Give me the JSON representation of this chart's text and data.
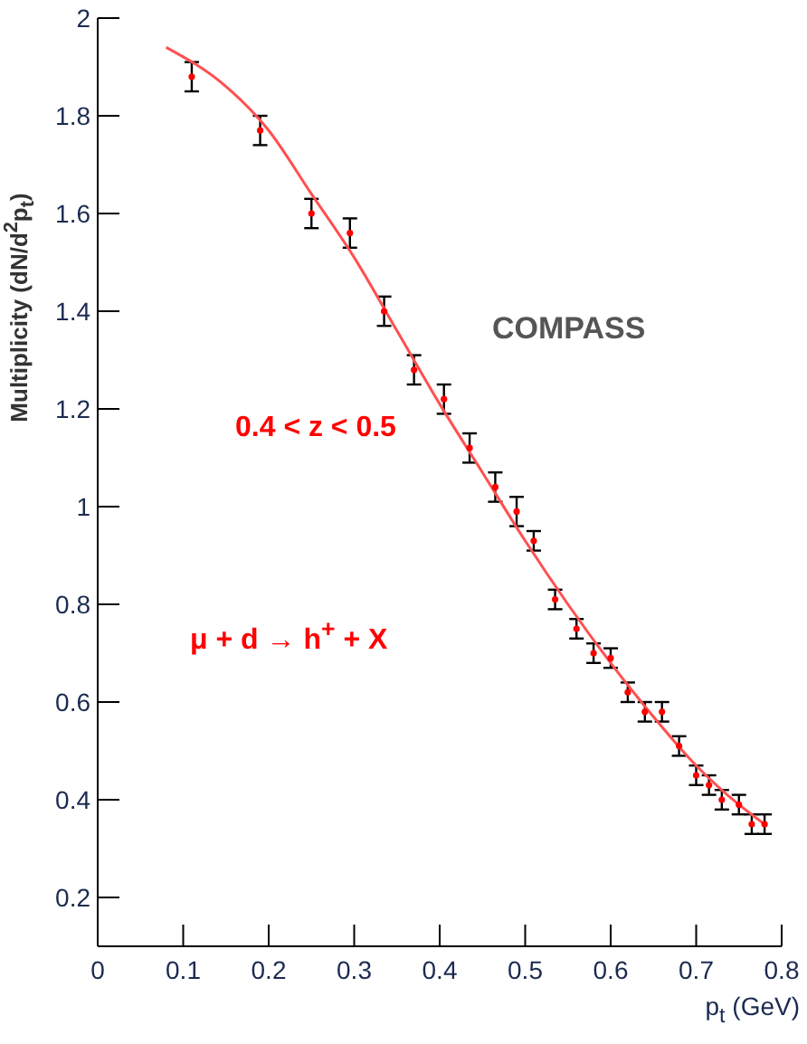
{
  "chart_data": {
    "type": "scatter",
    "xlabel": "p$_{t}$ (GeV)",
    "ylabel": "Multiplicity (dN/d$^{2}$p$_{t}$)",
    "annotations": [
      "COMPASS",
      "0.4 < z < 0.5",
      "μ + d → h$^{+}$ + X"
    ],
    "xlim": [
      0,
      0.8
    ],
    "xticks": [
      0,
      0.1,
      0.2,
      0.3,
      0.4,
      0.5,
      0.6,
      0.7,
      0.8
    ],
    "ylim": [
      0.1,
      2
    ],
    "yticks": [
      0.2,
      0.4,
      0.6,
      0.8,
      1,
      1.2,
      1.4,
      1.6,
      1.8,
      2
    ],
    "grid": false,
    "legend": false,
    "marker": "circle",
    "series": [
      {
        "color": "#ff0000",
        "x": [
          0.11,
          0.19,
          0.25,
          0.295,
          0.335,
          0.37,
          0.405,
          0.435,
          0.465,
          0.49,
          0.51,
          0.535,
          0.56,
          0.58,
          0.6,
          0.62,
          0.64,
          0.66,
          0.68,
          0.7,
          0.715,
          0.73,
          0.75,
          0.765,
          0.78
        ],
        "values": [
          1.88,
          1.77,
          1.6,
          1.56,
          1.4,
          1.28,
          1.22,
          1.12,
          1.04,
          0.99,
          0.93,
          0.81,
          0.75,
          0.7,
          0.69,
          0.62,
          0.58,
          0.58,
          0.51,
          0.45,
          0.43,
          0.4,
          0.39,
          0.35,
          0.35
        ],
        "errors": [
          0.03,
          0.03,
          0.03,
          0.03,
          0.03,
          0.03,
          0.03,
          0.03,
          0.03,
          0.03,
          0.02,
          0.02,
          0.02,
          0.02,
          0.02,
          0.02,
          0.02,
          0.02,
          0.02,
          0.02,
          0.02,
          0.02,
          0.02,
          0.02,
          0.02
        ]
      },
      {
        "type": "line",
        "marker": "none",
        "color": "#ff5050",
        "x": [
          0.08,
          0.15,
          0.2,
          0.25,
          0.3,
          0.35,
          0.4,
          0.45,
          0.5,
          0.55,
          0.6,
          0.65,
          0.7,
          0.75,
          0.78
        ],
        "values": [
          1.94,
          1.86,
          1.77,
          1.64,
          1.51,
          1.36,
          1.21,
          1.07,
          0.93,
          0.8,
          0.68,
          0.57,
          0.47,
          0.39,
          0.35
        ]
      }
    ]
  }
}
